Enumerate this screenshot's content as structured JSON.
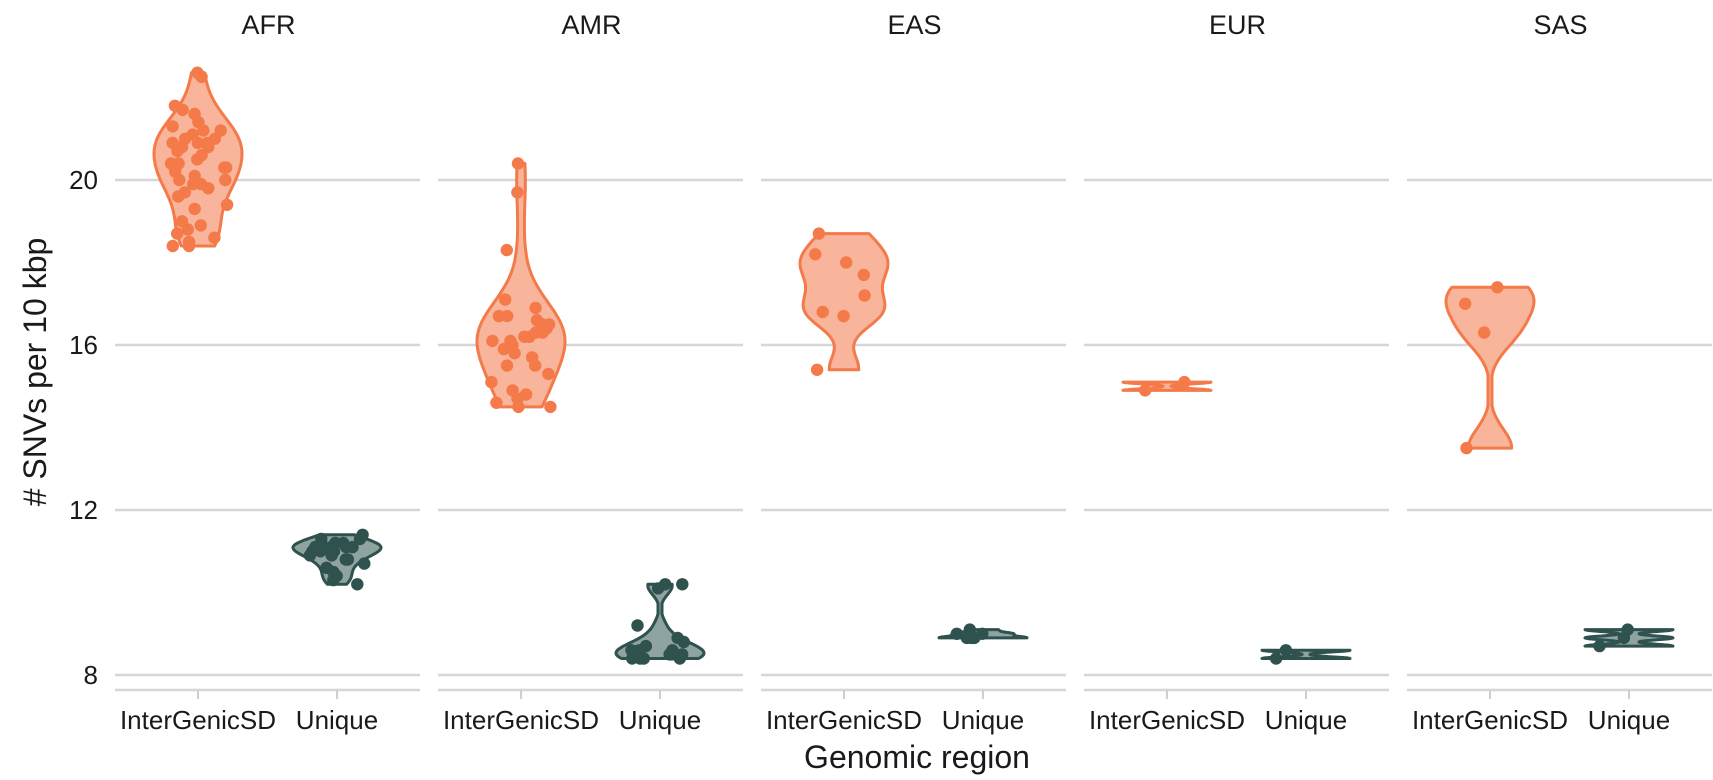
{
  "chart_data": {
    "type": "violin",
    "xlabel": "Genomic region",
    "ylabel": "# SNVs per 10 kbp",
    "categories": [
      "InterGenicSD",
      "Unique"
    ],
    "y_ticks": [
      8,
      12,
      16,
      20
    ],
    "ylim": [
      7.6,
      23.2
    ],
    "grid": "horizontal",
    "colors": {
      "InterGenicSD": {
        "point": "#f47a4a",
        "fill": "#f8b59b",
        "stroke": "#f47a4a"
      },
      "Unique": {
        "point": "#2f524f",
        "fill": "#8fa3a1",
        "stroke": "#2f524f"
      }
    },
    "facets": [
      {
        "label": "AFR",
        "series": [
          {
            "name": "InterGenicSD",
            "values": [
              22.6,
              22.5,
              21.8,
              21.7,
              21.6,
              21.4,
              21.3,
              21.2,
              21.2,
              21.1,
              21.0,
              21.0,
              20.9,
              20.9,
              20.9,
              20.8,
              20.8,
              20.7,
              20.6,
              20.5,
              20.4,
              20.4,
              20.3,
              20.3,
              20.2,
              20.1,
              20.0,
              20.0,
              19.9,
              19.9,
              19.8,
              19.7,
              19.6,
              19.4,
              19.3,
              19.0,
              18.9,
              18.8,
              18.7,
              18.6,
              18.5,
              18.4,
              18.4
            ]
          },
          {
            "name": "Unique",
            "values": [
              11.4,
              11.3,
              11.3,
              11.2,
              11.2,
              11.2,
              11.1,
              11.1,
              11.1,
              11.1,
              11.0,
              11.0,
              11.0,
              10.9,
              10.9,
              10.8,
              10.8,
              10.7,
              10.6,
              10.5,
              10.4,
              10.3,
              10.2
            ]
          }
        ]
      },
      {
        "label": "AMR",
        "series": [
          {
            "name": "InterGenicSD",
            "values": [
              20.4,
              19.7,
              18.3,
              17.1,
              16.9,
              16.7,
              16.7,
              16.6,
              16.5,
              16.5,
              16.4,
              16.3,
              16.3,
              16.2,
              16.2,
              16.1,
              16.1,
              16.0,
              15.9,
              15.8,
              15.7,
              15.5,
              15.5,
              15.3,
              15.1,
              14.9,
              14.8,
              14.7,
              14.6,
              14.5,
              14.5
            ]
          },
          {
            "name": "Unique",
            "values": [
              10.2,
              10.2,
              10.1,
              9.2,
              8.9,
              8.8,
              8.7,
              8.6,
              8.6,
              8.6,
              8.5,
              8.5,
              8.5,
              8.4,
              8.4,
              8.4,
              8.4
            ]
          }
        ]
      },
      {
        "label": "EAS",
        "series": [
          {
            "name": "InterGenicSD",
            "values": [
              18.7,
              18.2,
              18.0,
              17.7,
              17.2,
              16.8,
              16.7,
              15.4
            ]
          },
          {
            "name": "Unique",
            "values": [
              9.1,
              9.0,
              9.0,
              8.9,
              8.9,
              8.9
            ]
          }
        ]
      },
      {
        "label": "EUR",
        "series": [
          {
            "name": "InterGenicSD",
            "values": [
              15.1,
              14.9
            ]
          },
          {
            "name": "Unique",
            "values": [
              8.6,
              8.4
            ]
          }
        ]
      },
      {
        "label": "SAS",
        "series": [
          {
            "name": "InterGenicSD",
            "values": [
              17.4,
              17.0,
              16.3,
              13.5
            ]
          },
          {
            "name": "Unique",
            "values": [
              9.1,
              8.9,
              8.7
            ]
          }
        ]
      }
    ]
  }
}
